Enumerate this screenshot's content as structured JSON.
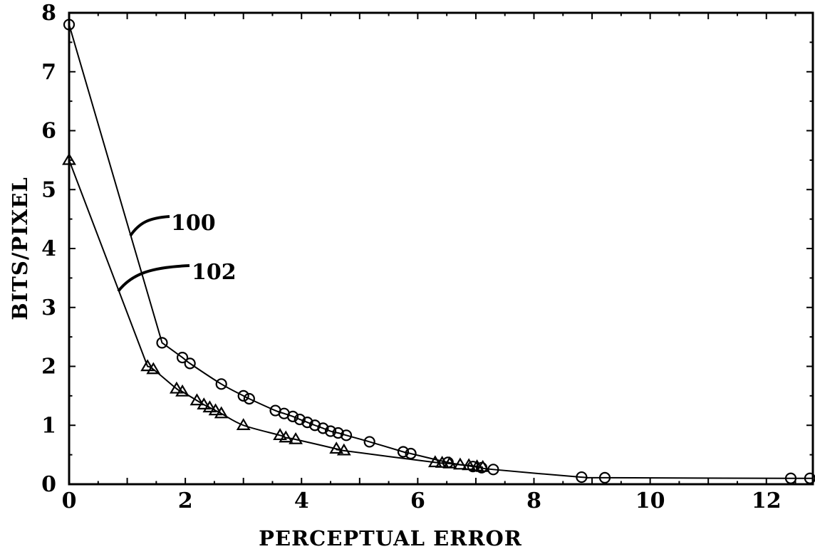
{
  "chart_data": {
    "type": "line",
    "xlabel": "PERCEPTUAL ERROR",
    "ylabel": "BITS/PIXEL",
    "xlim": [
      0,
      12.8
    ],
    "ylim": [
      0,
      8
    ],
    "x_ticks": [
      "0",
      "2",
      "4",
      "6",
      "8",
      "10",
      "12"
    ],
    "y_ticks": [
      "0",
      "1",
      "2",
      "3",
      "4",
      "5",
      "6",
      "7",
      "8"
    ],
    "grid": false,
    "legend": "none",
    "series": [
      {
        "name": "100",
        "marker": "circle",
        "points": [
          [
            0.0,
            7.8
          ],
          [
            1.6,
            2.4
          ],
          [
            1.95,
            2.15
          ],
          [
            2.08,
            2.05
          ],
          [
            2.62,
            1.7
          ],
          [
            3.0,
            1.5
          ],
          [
            3.1,
            1.45
          ],
          [
            3.55,
            1.25
          ],
          [
            3.7,
            1.2
          ],
          [
            3.85,
            1.15
          ],
          [
            3.97,
            1.1
          ],
          [
            4.1,
            1.05
          ],
          [
            4.23,
            1.0
          ],
          [
            4.37,
            0.95
          ],
          [
            4.5,
            0.9
          ],
          [
            4.63,
            0.87
          ],
          [
            4.77,
            0.83
          ],
          [
            5.17,
            0.72
          ],
          [
            5.75,
            0.55
          ],
          [
            5.88,
            0.52
          ],
          [
            6.52,
            0.37
          ],
          [
            6.95,
            0.3
          ],
          [
            7.1,
            0.28
          ],
          [
            7.3,
            0.25
          ],
          [
            8.82,
            0.12
          ],
          [
            9.22,
            0.11
          ],
          [
            12.42,
            0.1
          ],
          [
            12.75,
            0.1
          ]
        ]
      },
      {
        "name": "102",
        "marker": "triangle",
        "points": [
          [
            0.0,
            5.5
          ],
          [
            1.35,
            2.0
          ],
          [
            1.45,
            1.95
          ],
          [
            1.85,
            1.62
          ],
          [
            1.95,
            1.57
          ],
          [
            2.2,
            1.42
          ],
          [
            2.32,
            1.35
          ],
          [
            2.42,
            1.3
          ],
          [
            2.52,
            1.25
          ],
          [
            2.62,
            1.2
          ],
          [
            3.0,
            1.0
          ],
          [
            3.63,
            0.83
          ],
          [
            3.73,
            0.79
          ],
          [
            3.9,
            0.76
          ],
          [
            4.6,
            0.6
          ],
          [
            4.73,
            0.57
          ],
          [
            6.3,
            0.37
          ],
          [
            6.42,
            0.36
          ],
          [
            6.55,
            0.35
          ],
          [
            6.73,
            0.33
          ],
          [
            6.88,
            0.32
          ],
          [
            7.02,
            0.3
          ],
          [
            7.12,
            0.29
          ]
        ]
      }
    ],
    "annotations": [
      {
        "text": "100",
        "series": "100"
      },
      {
        "text": "102",
        "series": "102"
      }
    ]
  }
}
